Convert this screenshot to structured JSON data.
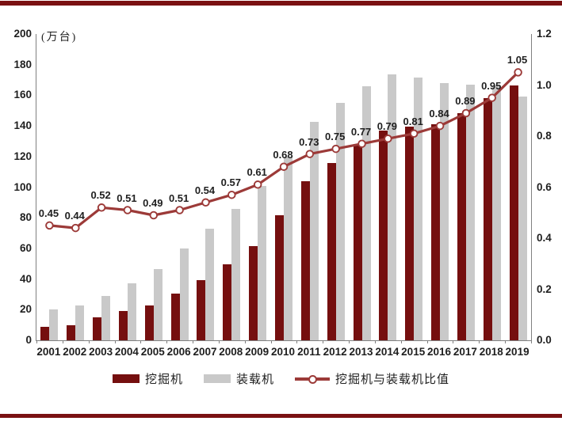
{
  "accent_colors": {
    "rule": "#7a1112",
    "excavator_bar": "#750f0f",
    "loader_bar": "#c9c9c9",
    "ratio_line": "#9c3a38",
    "axis": "#808080",
    "text": "#1f1f1f"
  },
  "chart_data": {
    "type": "bar",
    "subtype": "dual-axis bar + line combo",
    "title": "",
    "unit_label": "(万台)",
    "categories": [
      "2001",
      "2002",
      "2003",
      "2004",
      "2005",
      "2006",
      "2007",
      "2008",
      "2009",
      "2010",
      "2011",
      "2012",
      "2013",
      "2014",
      "2015",
      "2016",
      "2017",
      "2018",
      "2019"
    ],
    "series": [
      {
        "name": "挖掘机",
        "type": "bar",
        "axis": "left",
        "color": "#750f0f",
        "values": [
          9,
          10,
          15,
          19,
          23,
          30.5,
          39.5,
          49.5,
          61.5,
          81.5,
          104,
          116,
          128,
          137,
          139.5,
          141,
          148.5,
          158,
          166.5
        ]
      },
      {
        "name": "装载机",
        "type": "bar",
        "axis": "left",
        "color": "#c9c9c9",
        "values": [
          20,
          22.5,
          29,
          37,
          46.5,
          60,
          73,
          86,
          101,
          120,
          142.5,
          155,
          166,
          173.5,
          171.5,
          168,
          167,
          166.5,
          159
        ]
      },
      {
        "name": "挖掘机与装载机比值",
        "type": "line",
        "axis": "right",
        "color": "#9c3a38",
        "values": [
          0.45,
          0.44,
          0.52,
          0.51,
          0.49,
          0.51,
          0.54,
          0.57,
          0.61,
          0.68,
          0.73,
          0.75,
          0.77,
          0.79,
          0.81,
          0.84,
          0.89,
          0.95,
          1.05
        ],
        "labels": [
          "0.45",
          "0.44",
          "0.52",
          "0.51",
          "0.49",
          "0.51",
          "0.54",
          "0.57",
          "0.61",
          "0.68",
          "0.73",
          "0.75",
          "0.77",
          "0.79",
          "0.81",
          "0.84",
          "0.89",
          "0.95",
          "1.05"
        ]
      }
    ],
    "left_axis": {
      "min": 0,
      "max": 200,
      "tick_labels": [
        "200",
        "180",
        "160",
        "140",
        "120",
        "100",
        "80",
        "60",
        "40",
        "20",
        "0"
      ]
    },
    "right_axis": {
      "min": 0,
      "max": 1.2,
      "tick_labels": [
        "1.2",
        "1.0",
        "0.8",
        "0.6",
        "0.4",
        "0.2",
        "0.0"
      ]
    },
    "grid": false,
    "legend_position": "bottom"
  }
}
